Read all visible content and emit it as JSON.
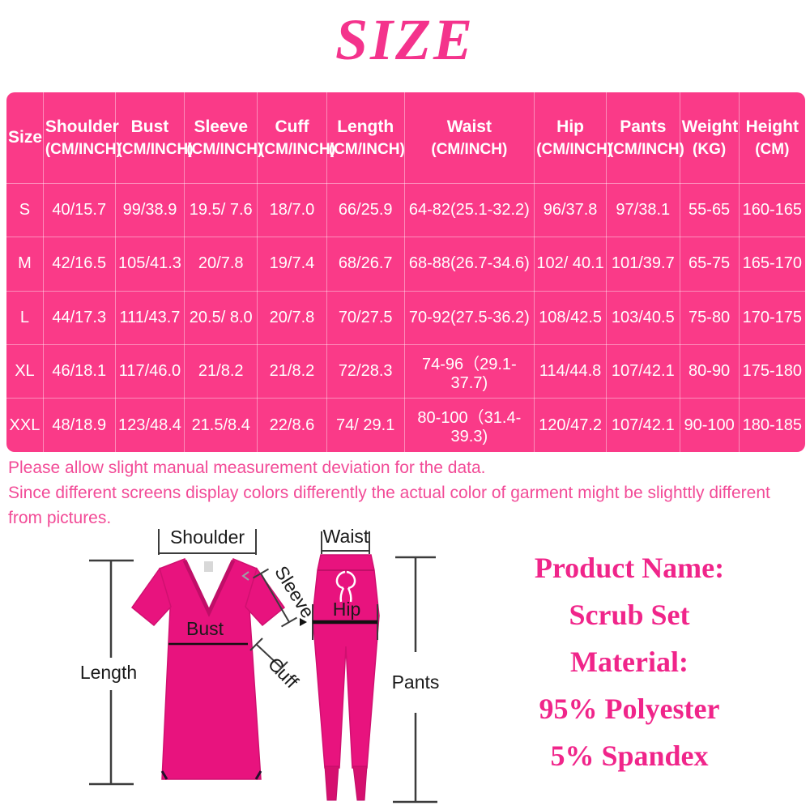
{
  "title": "SIZE",
  "size_table": {
    "columns": [
      {
        "label": "Size",
        "unit": ""
      },
      {
        "label": "Shoulder",
        "unit": "(CM/INCH)"
      },
      {
        "label": "Bust",
        "unit": "(CM/INCH)"
      },
      {
        "label": "Sleeve",
        "unit": "(CM/INCH)"
      },
      {
        "label": "Cuff",
        "unit": "(CM/INCH)"
      },
      {
        "label": "Length",
        "unit": "(CM/INCH)"
      },
      {
        "label": "Waist",
        "unit": "(CM/INCH)"
      },
      {
        "label": "Hip",
        "unit": "(CM/INCH)"
      },
      {
        "label": "Pants",
        "unit": "(CM/INCH)"
      },
      {
        "label": "Weight",
        "unit": "(KG)"
      },
      {
        "label": "Height",
        "unit": "(CM)"
      }
    ],
    "rows": [
      [
        "S",
        "40/15.7",
        "99/38.9",
        "19.5/ 7.6",
        "18/7.0",
        "66/25.9",
        "64-82(25.1-32.2)",
        "96/37.8",
        "97/38.1",
        "55-65",
        "160-165"
      ],
      [
        "M",
        "42/16.5",
        "105/41.3",
        "20/7.8",
        "19/7.4",
        "68/26.7",
        "68-88(26.7-34.6)",
        "102/ 40.1",
        "101/39.7",
        "65-75",
        "165-170"
      ],
      [
        "L",
        "44/17.3",
        "111/43.7",
        "20.5/ 8.0",
        "20/7.8",
        "70/27.5",
        "70-92(27.5-36.2)",
        "108/42.5",
        "103/40.5",
        "75-80",
        "170-175"
      ],
      [
        "XL",
        "46/18.1",
        "117/46.0",
        "21/8.2",
        "21/8.2",
        "72/28.3",
        "74-96（29.1-37.7)",
        "114/44.8",
        "107/42.1",
        "80-90",
        "175-180"
      ],
      [
        "XXL",
        "48/18.9",
        "123/48.4",
        "21.5/8.4",
        "22/8.6",
        "74/ 29.1",
        "80-100（31.4-39.3)",
        "120/47.2",
        "107/42.1",
        "90-100",
        "180-185"
      ]
    ]
  },
  "notes": [
    "Please allow slight manual measurement deviation for the data.",
    "Since different screens display colors differently the actual color of garment might be slighttly different from pictures."
  ],
  "diagram": {
    "labels": {
      "shoulder": "Shoulder",
      "sleeve": "Sleeve",
      "bust": "Bust",
      "cuff": "Cuff",
      "length": "Length",
      "waist": "Waist",
      "hip": "Hip",
      "pants": "Pants"
    }
  },
  "product_info": {
    "lines": [
      "Product Name:",
      "Scrub Set",
      "Material:",
      "95% Polyester",
      "5% Spandex"
    ]
  },
  "colors": {
    "table_pink": "#fa3a88",
    "title_pink": "#f4338c",
    "note_pink": "#f24b97",
    "product_text_pink": "#f0258a",
    "garment_pink": "#e8137e",
    "table_text": "#ffffff"
  }
}
